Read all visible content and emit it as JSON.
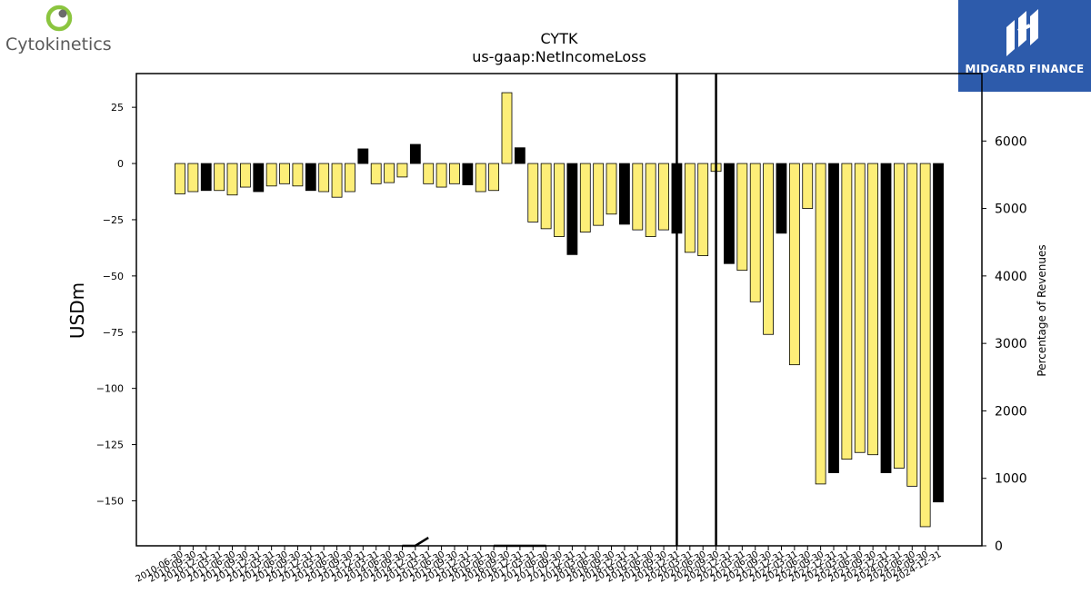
{
  "brand": {
    "name": "Cytokinetics"
  },
  "partner": {
    "name": "MIDGARD FINANCE"
  },
  "chart_data": {
    "type": "bar",
    "title": "CYTK",
    "subtitle": "us-gaap:NetIncomeLoss",
    "ylabel": "USDm",
    "y2label": "Percentage of Revenues",
    "ylim": [
      -170,
      40
    ],
    "y2lim": [
      0,
      7000
    ],
    "yticks": [
      25,
      0,
      -25,
      -50,
      -75,
      -100,
      -125,
      -150
    ],
    "ytick_labels": [
      "25",
      "0",
      "−25",
      "−50",
      "−75",
      "−100",
      "−125",
      "−150"
    ],
    "y2ticks": [
      0,
      1000,
      2000,
      3000,
      4000,
      5000,
      6000
    ],
    "y2tick_labels": [
      "0",
      "1000",
      "2000",
      "3000",
      "4000",
      "5000",
      "6000"
    ],
    "colors": {
      "quarter": "#fdee78",
      "year_end": "#000000"
    },
    "vlines": [
      "2019-12-31",
      "2020-09-30"
    ],
    "categories": [
      "2010-06-30",
      "2010-09-30",
      "2010-12-31",
      "2011-03-31",
      "2011-06-30",
      "2011-09-30",
      "2011-12-31",
      "2012-03-31",
      "2012-06-30",
      "2012-09-30",
      "2012-12-31",
      "2013-03-31",
      "2013-06-30",
      "2013-09-30",
      "2013-12-31",
      "2014-03-31",
      "2014-06-30",
      "2014-09-30",
      "2014-12-31",
      "2015-03-31",
      "2015-06-30",
      "2015-09-30",
      "2015-12-31",
      "2016-03-31",
      "2016-06-30",
      "2016-09-30",
      "2016-12-31",
      "2017-03-31",
      "2017-06-30",
      "2017-09-30",
      "2017-12-31",
      "2018-03-31",
      "2018-06-30",
      "2018-09-30",
      "2018-12-31",
      "2019-03-31",
      "2019-06-30",
      "2019-09-30",
      "2019-12-31",
      "2020-03-31",
      "2020-06-30",
      "2020-09-30",
      "2020-12-31",
      "2021-03-31",
      "2021-06-30",
      "2021-09-30",
      "2021-12-31",
      "2022-03-31",
      "2022-06-30",
      "2022-09-30",
      "2022-12-31",
      "2023-03-31",
      "2023-06-30",
      "2023-09-30",
      "2023-12-31",
      "2024-03-31",
      "2024-06-30",
      "2024-09-30",
      "2024-12-31"
    ],
    "series": [
      {
        "values": [
          -13.5,
          -12.5,
          -12,
          -12,
          -14,
          -10.5,
          -12.5,
          -10,
          -9,
          -10,
          -12,
          -12.5,
          -15,
          -12.5,
          6.5,
          -9,
          -8.5,
          -6,
          8.5,
          -9,
          -10.5,
          -9,
          -9.5,
          -12.5,
          -12,
          31.5,
          7,
          -26,
          -29,
          -32.5,
          -40.5,
          -30.5,
          -27.5,
          -22.5,
          -27,
          -29.5,
          -32.5,
          -29.5,
          -31,
          -39.5,
          -41,
          -3.5,
          -44.5,
          -47.5,
          -61.5,
          -76,
          -31,
          -89.5,
          -20,
          -142.5,
          -137.5,
          -131.5,
          -128.5,
          -129.5,
          -137.5,
          -135.5,
          -143.5,
          -161.5,
          -150.5
        ]
      },
      {
        "axis": "right",
        "x": [
          "2014-09-30",
          "2014-12-31",
          "2015-03-31",
          "2016-06-30",
          "2016-09-30",
          "2016-12-31",
          "2017-03-31",
          "2017-06-30"
        ],
        "values": [
          0,
          0,
          120,
          0,
          0,
          0,
          0,
          0
        ]
      }
    ],
    "highlight": [
      "2010-12-31",
      "2011-12-31",
      "2012-12-31",
      "2013-12-31",
      "2014-12-31",
      "2015-12-31",
      "2016-12-31",
      "2017-12-31",
      "2018-12-31",
      "2019-12-31",
      "2020-12-31",
      "2021-12-31",
      "2022-12-31",
      "2023-12-31",
      "2024-12-31"
    ]
  }
}
